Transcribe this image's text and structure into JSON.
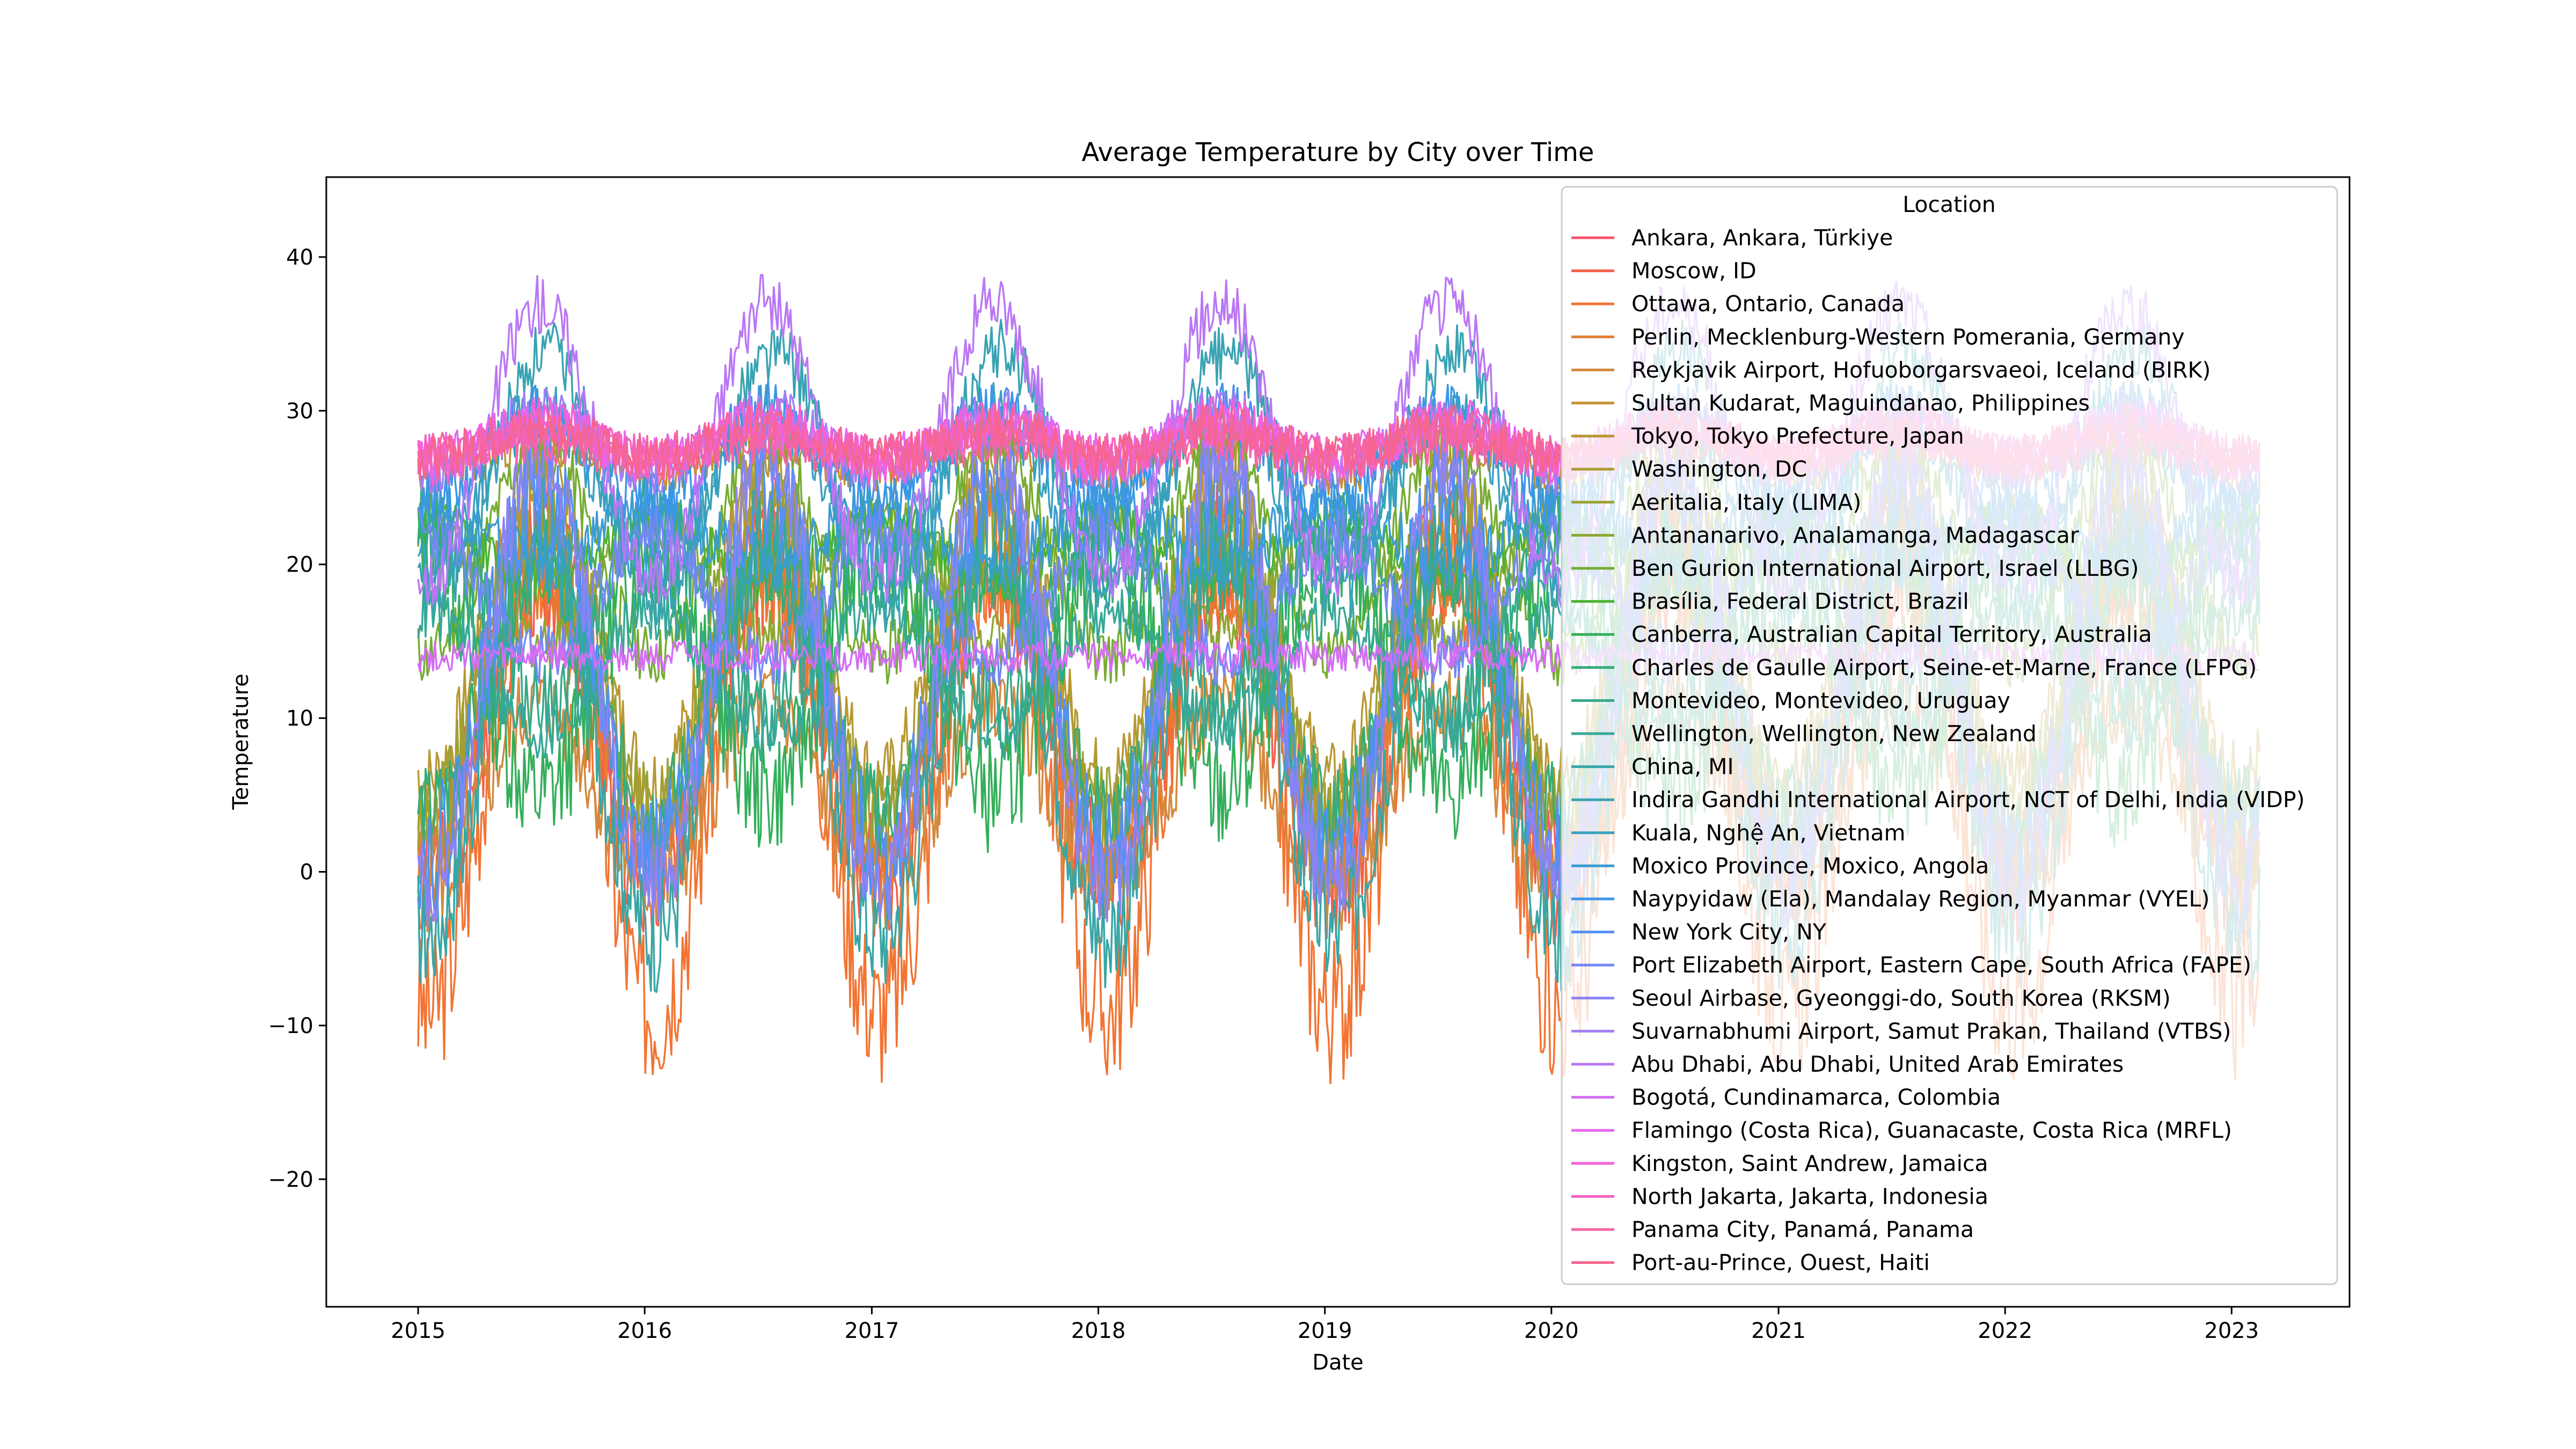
{
  "chart_data": {
    "type": "line",
    "title": "Average Temperature by City over Time",
    "xlabel": "Date",
    "ylabel": "Temperature",
    "x_ticks": [
      "2015",
      "2016",
      "2017",
      "2018",
      "2019",
      "2020",
      "2021",
      "2022",
      "2023"
    ],
    "y_ticks": [
      -20,
      -10,
      0,
      10,
      20,
      30,
      40
    ],
    "xlim": [
      "2014-08-06",
      "2023-07-10"
    ],
    "ylim": [
      -28.3,
      45.2
    ],
    "x_range": [
      "2015-01-01",
      "2023-02-15"
    ],
    "legend_title": "Location",
    "legend_position": "top-right",
    "grid": false,
    "series": [
      {
        "name": "Ankara, Ankara, Türkiye",
        "color": "#f7536f",
        "mean": 12,
        "amp": 11,
        "phase": 0,
        "noise": 3
      },
      {
        "name": "Moscow, ID",
        "color": "#f35f4a",
        "mean": 9,
        "amp": 10,
        "phase": 0,
        "noise": 4
      },
      {
        "name": "Ottawa, Ontario, Canada",
        "color": "#f27433",
        "mean": 6,
        "amp": 15,
        "phase": 0,
        "noise": 5
      },
      {
        "name": "Perlin, Mecklenburg-Western Pomerania, Germany",
        "color": "#e37f32",
        "mean": 10,
        "amp": 9,
        "phase": 0,
        "noise": 3
      },
      {
        "name": "Reykjavik Airport, Hofuoborgarsvaeoi, Iceland (BIRK)",
        "color": "#d3893e",
        "mean": 5,
        "amp": 6,
        "phase": 0,
        "noise": 3
      },
      {
        "name": "Sultan Kudarat, Maguindanao, Philippines",
        "color": "#c59032",
        "mean": 27,
        "amp": 1,
        "phase": 0,
        "noise": 1.5
      },
      {
        "name": "Tokyo, Tokyo Prefecture, Japan",
        "color": "#b89833",
        "mean": 16,
        "amp": 10,
        "phase": 0,
        "noise": 2.5
      },
      {
        "name": "Washington, DC",
        "color": "#aa9d33",
        "mean": 14,
        "amp": 12,
        "phase": 0,
        "noise": 4
      },
      {
        "name": "Aeritalia, Italy (LIMA)",
        "color": "#9ca133",
        "mean": 13,
        "amp": 9,
        "phase": 0,
        "noise": 3
      },
      {
        "name": "Antananarivo, Analamanga, Madagascar",
        "color": "#8ca732",
        "mean": 19,
        "amp": -4,
        "phase": 0,
        "noise": 2
      },
      {
        "name": "Ben Gurion International Airport, Israel (LLBG)",
        "color": "#76ac32",
        "mean": 21,
        "amp": 7,
        "phase": 0,
        "noise": 2
      },
      {
        "name": "Brasília, Federal District, Brazil",
        "color": "#4db232",
        "mean": 21,
        "amp": -2,
        "phase": 0,
        "noise": 1.5
      },
      {
        "name": "Canberra, Australian Capital Territory, Australia",
        "color": "#34af5a",
        "mean": 13,
        "amp": -8,
        "phase": 0,
        "noise": 4
      },
      {
        "name": "Charles de Gaulle Airport, Seine-et-Marne, France (LFPG)",
        "color": "#35ac7a",
        "mean": 12,
        "amp": 8,
        "phase": 0,
        "noise": 3
      },
      {
        "name": "Montevideo, Montevideo, Uruguay",
        "color": "#36aa8b",
        "mean": 17,
        "amp": -6,
        "phase": 0,
        "noise": 3
      },
      {
        "name": "Wellington, Wellington, New Zealand",
        "color": "#37a898",
        "mean": 13,
        "amp": -4,
        "phase": 0,
        "noise": 2
      },
      {
        "name": "China, MI",
        "color": "#38a6a5",
        "mean": 9,
        "amp": 13,
        "phase": 0,
        "noise": 4
      },
      {
        "name": "Indira Gandhi International Airport, NCT of Delhi, India (VIDP)",
        "color": "#39a3b2",
        "mean": 26,
        "amp": 8,
        "phase": 0.6,
        "noise": 2
      },
      {
        "name": "Kuala, Nghệ An, Vietnam",
        "color": "#3aa0c1",
        "mean": 25,
        "amp": 5,
        "phase": 0,
        "noise": 2
      },
      {
        "name": "Moxico Province, Moxico, Angola",
        "color": "#3b9cd2",
        "mean": 22,
        "amp": -2,
        "phase": 0,
        "noise": 2
      },
      {
        "name": "Naypyidaw (Ela), Mandalay Region, Myanmar (VYEL)",
        "color": "#3c96e8",
        "mean": 27,
        "amp": 3,
        "phase": 0,
        "noise": 2
      },
      {
        "name": "New York City, NY",
        "color": "#5390f4",
        "mean": 13,
        "amp": 12,
        "phase": 0,
        "noise": 4
      },
      {
        "name": "Port Elizabeth Airport, Eastern Cape, South Africa (FAPE)",
        "color": "#7488f4",
        "mean": 18,
        "amp": -4,
        "phase": 0,
        "noise": 2
      },
      {
        "name": "Seoul Airbase, Gyeonggi-do, South Korea (RKSM)",
        "color": "#8c83f4",
        "mean": 13,
        "amp": 14,
        "phase": 0,
        "noise": 3
      },
      {
        "name": "Suvarnabhumi Airport, Samut Prakan, Thailand (VTBS)",
        "color": "#a27ef4",
        "mean": 28,
        "amp": 2,
        "phase": 0,
        "noise": 1.5
      },
      {
        "name": "Abu Dhabi, Abu Dhabi, United Arab Emirates",
        "color": "#ba77f4",
        "mean": 28,
        "amp": 9,
        "phase": 0,
        "noise": 2
      },
      {
        "name": "Bogotá, Cundinamarca, Colombia",
        "color": "#d46ef4",
        "mean": 14,
        "amp": 0,
        "phase": 0,
        "noise": 1
      },
      {
        "name": "Flamingo (Costa Rica), Guanacaste, Costa Rica (MRFL)",
        "color": "#e667f0",
        "mean": 28,
        "amp": 1,
        "phase": 0,
        "noise": 1.5
      },
      {
        "name": "Kingston, Saint Andrew, Jamaica",
        "color": "#f361d9",
        "mean": 28,
        "amp": 1.5,
        "phase": 0,
        "noise": 1.5
      },
      {
        "name": "North Jakarta, Jakarta, Indonesia",
        "color": "#f463c2",
        "mean": 28,
        "amp": 0.5,
        "phase": 0,
        "noise": 1
      },
      {
        "name": "Panama City, Panamá, Panama",
        "color": "#f564a9",
        "mean": 27.5,
        "amp": 0.5,
        "phase": 0,
        "noise": 1.5
      },
      {
        "name": "Port-au-Prince, Ouest, Haiti",
        "color": "#f6658f",
        "mean": 28,
        "amp": 1,
        "phase": 0,
        "noise": 1.5
      }
    ]
  }
}
